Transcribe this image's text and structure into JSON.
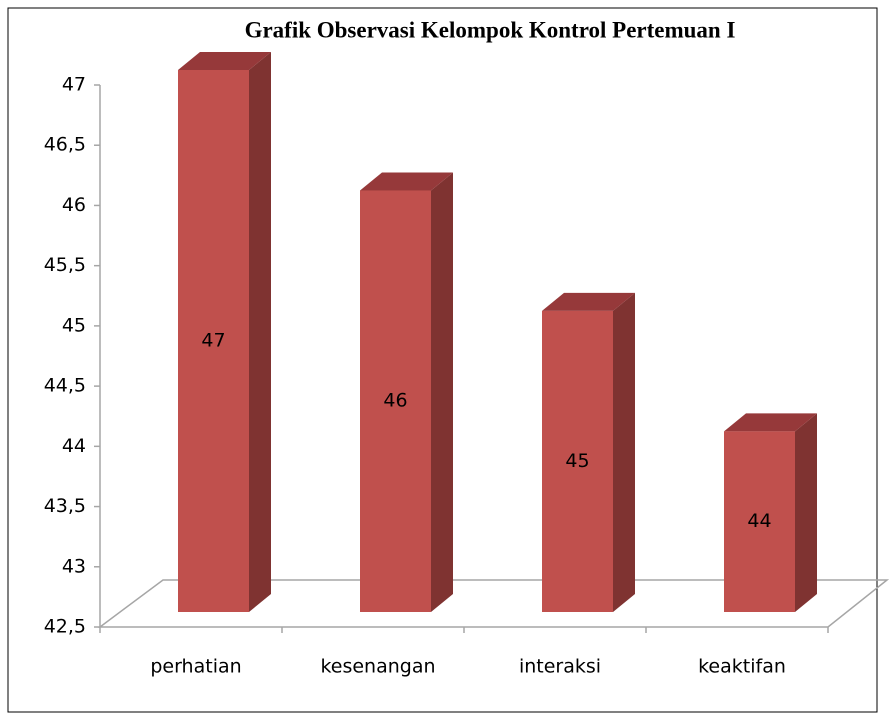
{
  "chart_data": {
    "type": "bar3d",
    "title": "Grafik Observasi Kelompok Kontrol Pertemuan I",
    "categories": [
      "perhatian",
      "kesenangan",
      "interaksi",
      "keaktifan"
    ],
    "values": [
      47,
      46,
      45,
      44
    ],
    "color": "#c0504d",
    "ylim": [
      42.5,
      47
    ],
    "yticks": [
      {
        "value": 42.5,
        "label": "42,5"
      },
      43,
      {
        "value": 43.5,
        "label": "43,5"
      },
      44,
      {
        "value": 44.5,
        "label": "44,5"
      },
      45,
      {
        "value": 45.5,
        "label": "45,5"
      },
      46,
      {
        "value": 46.5,
        "label": "46,5"
      },
      47
    ],
    "grid": false
  }
}
